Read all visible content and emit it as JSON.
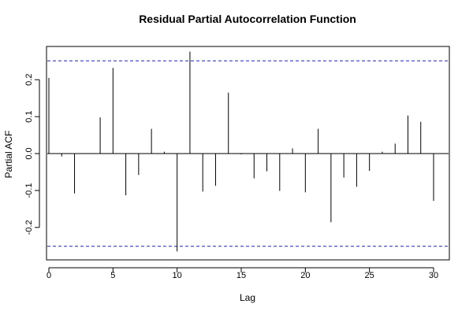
{
  "chart_data": {
    "type": "bar",
    "title": "Residual Partial Autocorrelation Function",
    "xlabel": "Lag",
    "ylabel": "Partial ACF",
    "xlim": [
      0,
      31
    ],
    "ylim": [
      -0.28,
      0.28
    ],
    "x_ticks": [
      0,
      5,
      10,
      15,
      20,
      25,
      30
    ],
    "y_ticks": [
      -0.2,
      -0.1,
      0.0,
      0.1,
      0.2
    ],
    "x_tick_labels": [
      "0",
      "5",
      "10",
      "15",
      "20",
      "25",
      "30"
    ],
    "y_tick_labels": [
      "-0.2",
      "-0.1",
      "0.0",
      "0.1",
      "0.2"
    ],
    "confidence_bounds": [
      0.251,
      -0.251
    ],
    "lags": [
      0,
      1,
      2,
      3,
      4,
      5,
      6,
      7,
      8,
      9,
      10,
      11,
      12,
      13,
      14,
      15,
      16,
      17,
      18,
      19,
      20,
      21,
      22,
      23,
      24,
      25,
      26,
      27,
      28,
      29,
      30
    ],
    "values": [
      0.205,
      -0.008,
      -0.108,
      0.0,
      0.098,
      0.232,
      -0.113,
      -0.058,
      0.067,
      0.005,
      -0.265,
      0.276,
      -0.103,
      -0.087,
      0.165,
      -0.002,
      -0.067,
      -0.048,
      -0.101,
      0.014,
      -0.105,
      0.067,
      -0.186,
      -0.065,
      -0.09,
      -0.047,
      0.005,
      0.027,
      0.103,
      0.086,
      -0.128
    ],
    "colors": {
      "bars": "#000000",
      "bounds": "#2020b0",
      "axis": "#000000"
    }
  }
}
